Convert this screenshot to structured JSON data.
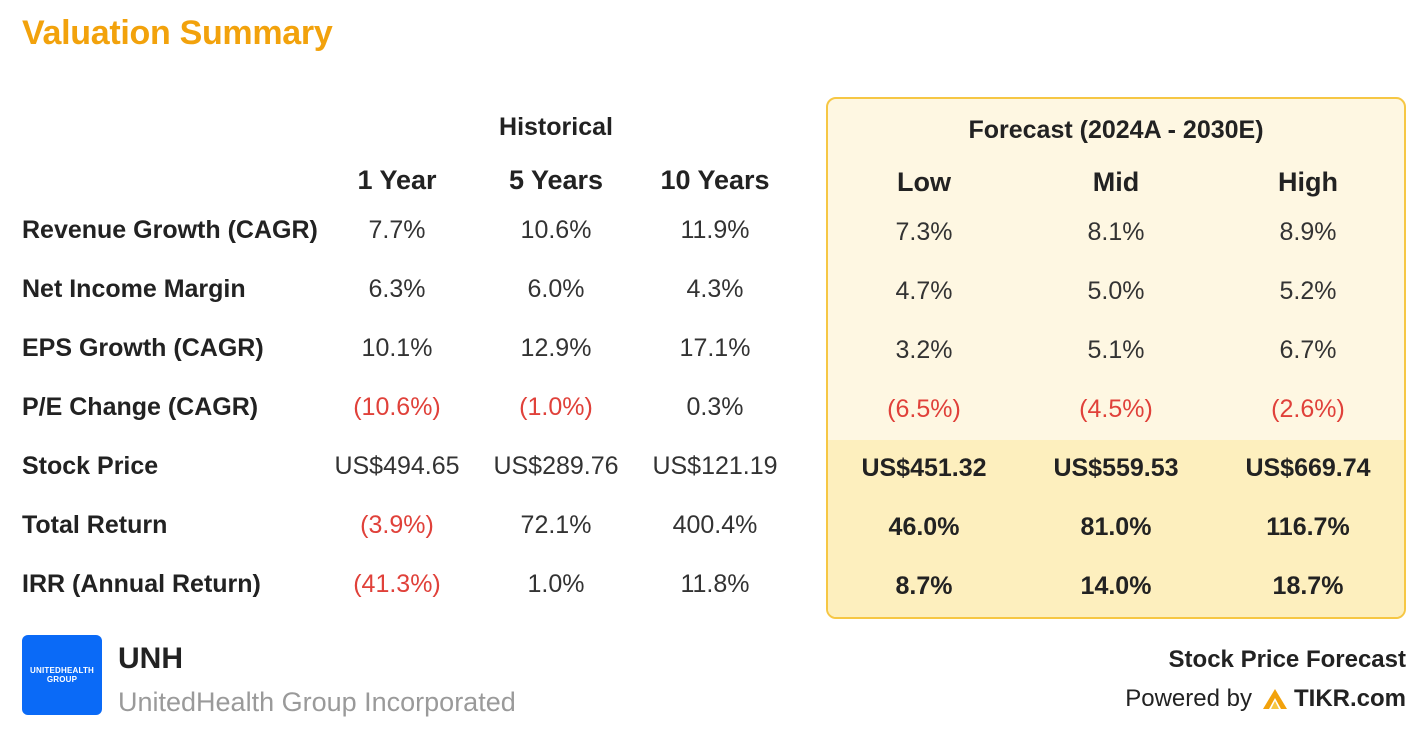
{
  "title": "Valuation Summary",
  "historical": {
    "label": "Historical",
    "columns": [
      "1 Year",
      "5 Years",
      "10 Years"
    ]
  },
  "forecast": {
    "label": "Forecast (2024A - 2030E)",
    "columns": [
      "Low",
      "Mid",
      "High"
    ]
  },
  "rows": [
    {
      "label": "Revenue Growth (CAGR)",
      "historical": [
        "7.7%",
        "10.6%",
        "11.9%"
      ],
      "forecast": [
        "7.3%",
        "8.1%",
        "8.9%"
      ]
    },
    {
      "label": "Net Income Margin",
      "historical": [
        "6.3%",
        "6.0%",
        "4.3%"
      ],
      "forecast": [
        "4.7%",
        "5.0%",
        "5.2%"
      ]
    },
    {
      "label": "EPS Growth (CAGR)",
      "historical": [
        "10.1%",
        "12.9%",
        "17.1%"
      ],
      "forecast": [
        "3.2%",
        "5.1%",
        "6.7%"
      ]
    },
    {
      "label": "P/E Change (CAGR)",
      "historical": [
        "(10.6%)",
        "(1.0%)",
        "0.3%"
      ],
      "forecast": [
        "(6.5%)",
        "(4.5%)",
        "(2.6%)"
      ]
    },
    {
      "label": "Stock Price",
      "historical": [
        "US$494.65",
        "US$289.76",
        "US$121.19"
      ],
      "forecast": [
        "US$451.32",
        "US$559.53",
        "US$669.74"
      ]
    },
    {
      "label": "Total Return",
      "historical": [
        "(3.9%)",
        "72.1%",
        "400.4%"
      ],
      "forecast": [
        "46.0%",
        "81.0%",
        "116.7%"
      ]
    },
    {
      "label": "IRR (Annual Return)",
      "historical": [
        "(41.3%)",
        "1.0%",
        "11.8%"
      ],
      "forecast": [
        "8.7%",
        "14.0%",
        "18.7%"
      ]
    }
  ],
  "company": {
    "ticker": "UNH",
    "name": "UnitedHealth Group Incorporated",
    "logo_line1": "UNITEDHEALTH",
    "logo_line2": "GROUP",
    "logo_color": "#0A6AF7"
  },
  "footer": {
    "label": "Stock Price Forecast",
    "powered_by": "Powered by",
    "brand": "TIKR.com",
    "brand_icon": "tikr-logo-icon"
  },
  "colors": {
    "title": "#F2A20C",
    "negative": "#E0413A",
    "forecast_border": "#F6C744",
    "forecast_bg": "#FEF7E2",
    "forecast_bg_strong": "#FDEFBE"
  }
}
